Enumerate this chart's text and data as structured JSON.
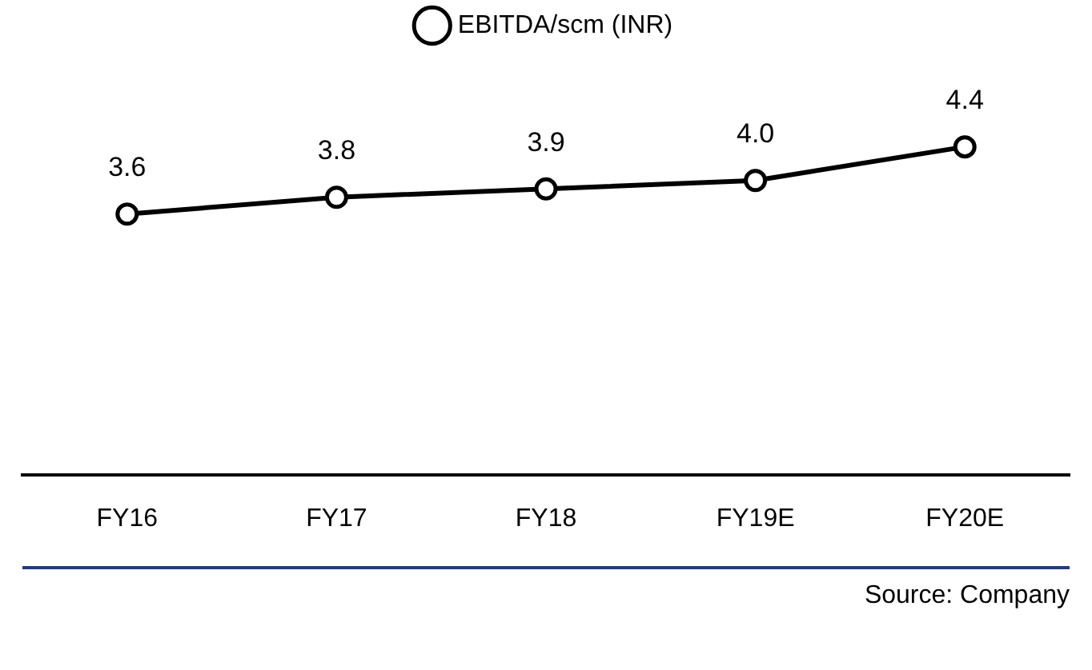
{
  "chart_data": {
    "type": "line",
    "categories": [
      "FY16",
      "FY17",
      "FY18",
      "FY19E",
      "FY20E"
    ],
    "series": [
      {
        "name": "EBITDA/scm (INR)",
        "color": "#000000",
        "values": [
          3.6,
          3.8,
          3.9,
          4.0,
          4.4
        ],
        "value_labels": [
          "3.6",
          "3.8",
          "3.9",
          "4.0",
          "4.4"
        ]
      }
    ],
    "tick_labels": "x",
    "legend": "top",
    "marker": "circle",
    "line_style": "solid",
    "grid": false,
    "annotations": [
      "Source: Company"
    ]
  }
}
